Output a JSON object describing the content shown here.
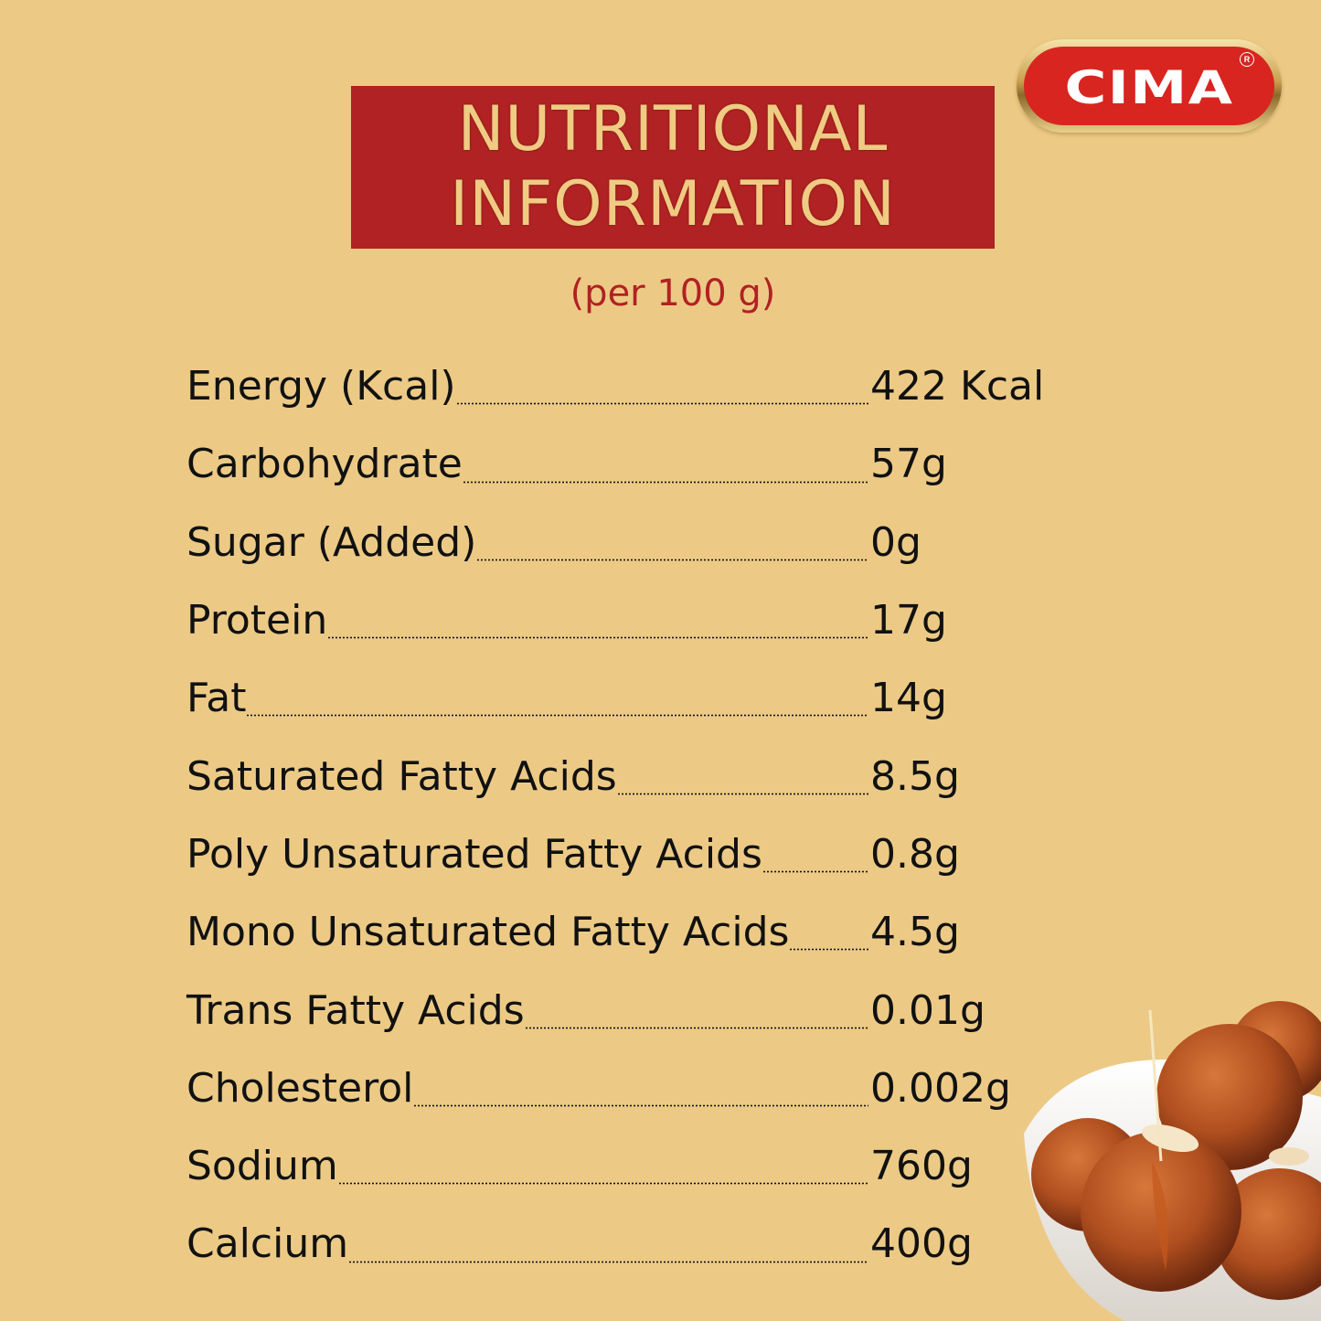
{
  "brand": {
    "name": "CIMA",
    "registered_mark": "R",
    "colors": {
      "red": "#d8251f",
      "gold": "#c9a050"
    }
  },
  "header": {
    "title_line1": "NUTRITIONAL",
    "title_line2": "INFORMATION",
    "subtitle": "(per 100 g)",
    "colors": {
      "box": "#b02223",
      "text": "#efcb83",
      "background": "#ecca86"
    }
  },
  "nutrients": [
    {
      "label": "Energy (Kcal)",
      "value": "422 Kcal"
    },
    {
      "label": "Carbohydrate",
      "value": "57g"
    },
    {
      "label": "Sugar (Added)",
      "value": "0g"
    },
    {
      "label": "Protein",
      "value": "17g"
    },
    {
      "label": "Fat",
      "value": "14g"
    },
    {
      "label": "Saturated Fatty Acids",
      "value": "8.5g"
    },
    {
      "label": "Poly Unsaturated Fatty Acids",
      "value": "0.8g"
    },
    {
      "label": "Mono Unsaturated Fatty Acids",
      "value": "4.5g"
    },
    {
      "label": "Trans Fatty Acids",
      "value": "0.01g"
    },
    {
      "label": "Cholesterol",
      "value": "0.002g"
    },
    {
      "label": "Sodium",
      "value": "760g"
    },
    {
      "label": "Calcium",
      "value": "400g"
    }
  ],
  "image": {
    "subject": "gulab-jamun-bowl"
  }
}
